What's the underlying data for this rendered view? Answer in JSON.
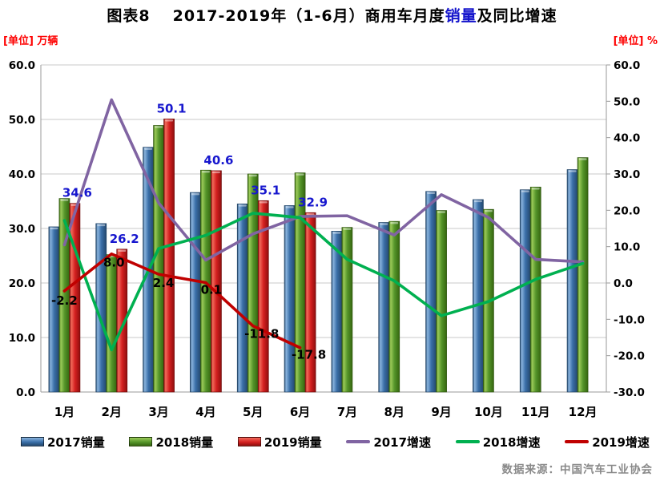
{
  "title": {
    "prefix": "图表8",
    "main_before": "2017-2019年（1-6月）商用车月度",
    "highlight": "销量",
    "main_after": "及同比增速"
  },
  "axes": {
    "left_unit": "[单位] 万辆",
    "right_unit": "[单位] %"
  },
  "chart_data": {
    "type": "bar+line combo",
    "categories": [
      "1月",
      "2月",
      "3月",
      "4月",
      "5月",
      "6月",
      "7月",
      "8月",
      "9月",
      "10月",
      "11月",
      "12月"
    ],
    "left_axis": {
      "label": "[单位] 万辆",
      "min": 0,
      "max": 60,
      "ticks": [
        "0.0",
        "10.0",
        "20.0",
        "30.0",
        "40.0",
        "50.0",
        "60.0"
      ]
    },
    "right_axis": {
      "label": "[单位] %",
      "min": -30,
      "max": 60,
      "ticks": [
        "-30.0",
        "-20.0",
        "-10.0",
        "0.0",
        "10.0",
        "20.0",
        "30.0",
        "40.0",
        "50.0",
        "60.0"
      ]
    },
    "bar_series": [
      {
        "name": "2017销量",
        "color": "#3A6FA8",
        "edge": "#1F4062",
        "gradient": [
          "#24486E",
          "#8AB4DE",
          "#3A6FA8",
          "#24486E"
        ],
        "values": [
          30.3,
          30.9,
          44.9,
          36.6,
          34.5,
          34.2,
          29.5,
          31.1,
          36.8,
          35.3,
          37.1,
          40.8
        ],
        "labels_shown": false
      },
      {
        "name": "2018销量",
        "color": "#55952A",
        "edge": "#2F5510",
        "gradient": [
          "#35660F",
          "#9CCB59",
          "#55952A",
          "#35660F"
        ],
        "values": [
          35.5,
          25.2,
          48.9,
          40.7,
          40.0,
          40.2,
          30.2,
          31.3,
          33.3,
          33.5,
          37.6,
          43.0
        ],
        "labels_shown": false
      },
      {
        "name": "2019销量",
        "color": "#D42020",
        "edge": "#6E0808",
        "gradient": [
          "#8F0E0E",
          "#F26B5B",
          "#D42020",
          "#8F0E0E"
        ],
        "values": [
          34.6,
          26.2,
          50.1,
          40.6,
          35.1,
          32.9
        ],
        "labels_shown": true,
        "label_color": "#1717CE"
      }
    ],
    "line_series": [
      {
        "name": "2017增速",
        "color": "#8064A2",
        "values": [
          10.5,
          50.4,
          22.0,
          6.3,
          13.5,
          18.3,
          18.5,
          13.2,
          24.3,
          18.0,
          6.5,
          5.8
        ],
        "labels_shown": false
      },
      {
        "name": "2018增速",
        "color": "#00B050",
        "values": [
          17.2,
          -18.4,
          9.5,
          13.1,
          19.2,
          18.0,
          6.5,
          0.6,
          -9.0,
          -5.1,
          1.0,
          5.4
        ],
        "labels_shown": false
      },
      {
        "name": "2019增速",
        "color": "#C00000",
        "values": [
          -2.2,
          8.0,
          2.4,
          0.1,
          -11.8,
          -17.8
        ],
        "labels_shown": true,
        "label_color": "#000000"
      }
    ]
  },
  "legend": [
    {
      "label": "2017销量",
      "type": "bar",
      "color": "#3A6FA8",
      "light": "#8AB4DE",
      "dark": "#24486E"
    },
    {
      "label": "2018销量",
      "type": "bar",
      "color": "#55952A",
      "light": "#9CCB59",
      "dark": "#35660F"
    },
    {
      "label": "2019销量",
      "type": "bar",
      "color": "#D42020",
      "light": "#F26B5B",
      "dark": "#8F0E0E"
    },
    {
      "label": "2017增速",
      "type": "line",
      "color": "#8064A2"
    },
    {
      "label": "2018增速",
      "type": "line",
      "color": "#00B050"
    },
    {
      "label": "2019增速",
      "type": "line",
      "color": "#C00000"
    }
  ],
  "footer": {
    "source": "数据来源：中国汽车工业协会"
  }
}
